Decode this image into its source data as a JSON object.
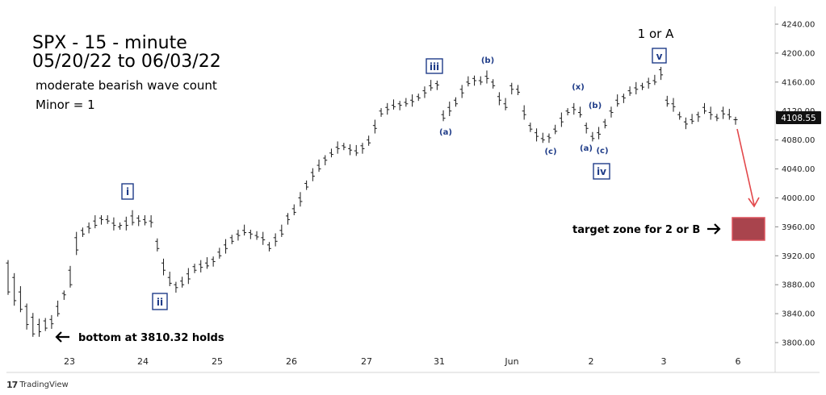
{
  "logo": {
    "mark": "17",
    "text": "TradingView"
  },
  "chart_data": {
    "type": "candlestick",
    "title": "SPX - 15 - minute",
    "subtitle": "05/20/22 to 06/03/22",
    "notes": [
      "moderate bearish wave count",
      "Minor = 1"
    ],
    "ylim": [
      3780,
      4250
    ],
    "y_ticks": [
      "4240.00",
      "4200.00",
      "4160.00",
      "4120.00",
      "4080.00",
      "4040.00",
      "4000.00",
      "3960.00",
      "3920.00",
      "3880.00",
      "3840.00",
      "3800.00"
    ],
    "x_ticks": [
      "23",
      "24",
      "25",
      "26",
      "27",
      "31",
      "Jun",
      "2",
      "3",
      "6"
    ],
    "last_price": "4108.55",
    "price_path": [
      [
        3910,
        3870
      ],
      [
        3890,
        3858
      ],
      [
        3870,
        3846
      ],
      [
        3850,
        3825
      ],
      [
        3835,
        3812
      ],
      [
        3825,
        3815
      ],
      [
        3830,
        3820
      ],
      [
        3832,
        3826
      ],
      [
        3850,
        3840
      ],
      [
        3868,
        3866
      ],
      [
        3900,
        3880
      ],
      [
        3945,
        3928
      ],
      [
        3955,
        3950
      ],
      [
        3960,
        3958
      ],
      [
        3968,
        3962
      ],
      [
        3972,
        3970
      ],
      [
        3970,
        3968
      ],
      [
        3965,
        3962
      ],
      [
        3960,
        3962
      ],
      [
        3968,
        3962
      ],
      [
        3975,
        3966
      ],
      [
        3972,
        3968
      ],
      [
        3970,
        3966
      ],
      [
        3968,
        3966
      ],
      [
        3940,
        3930
      ],
      [
        3910,
        3900
      ],
      [
        3890,
        3882
      ],
      [
        3880,
        3876
      ],
      [
        3885,
        3880
      ],
      [
        3895,
        3888
      ],
      [
        3905,
        3900
      ],
      [
        3908,
        3904
      ],
      [
        3910,
        3906
      ],
      [
        3915,
        3912
      ],
      [
        3925,
        3920
      ],
      [
        3935,
        3930
      ],
      [
        3945,
        3940
      ],
      [
        3950,
        3948
      ],
      [
        3955,
        3952
      ],
      [
        3952,
        3950
      ],
      [
        3948,
        3946
      ],
      [
        3945,
        3942
      ],
      [
        3935,
        3930
      ],
      [
        3945,
        3940
      ],
      [
        3955,
        3950
      ],
      [
        3975,
        3970
      ],
      [
        3985,
        3980
      ],
      [
        4000,
        3995
      ],
      [
        4020,
        4015
      ],
      [
        4035,
        4030
      ],
      [
        4045,
        4040
      ],
      [
        4055,
        4052
      ],
      [
        4062,
        4060
      ],
      [
        4070,
        4068
      ],
      [
        4072,
        4070
      ],
      [
        4068,
        4066
      ],
      [
        4065,
        4062
      ],
      [
        4072,
        4068
      ],
      [
        4080,
        4076
      ],
      [
        4100,
        4096
      ],
      [
        4120,
        4116
      ],
      [
        4125,
        4122
      ],
      [
        4128,
        4126
      ],
      [
        4130,
        4128
      ],
      [
        4132,
        4130
      ],
      [
        4135,
        4133
      ],
      [
        4140,
        4138
      ],
      [
        4148,
        4145
      ],
      [
        4155,
        4152
      ],
      [
        4158,
        4156
      ],
      [
        4115,
        4110
      ],
      [
        4125,
        4120
      ],
      [
        4135,
        4130
      ],
      [
        4150,
        4145
      ],
      [
        4160,
        4158
      ],
      [
        4165,
        4162
      ],
      [
        4162,
        4160
      ],
      [
        4168,
        4165
      ],
      [
        4160,
        4155
      ],
      [
        4140,
        4135
      ],
      [
        4130,
        4125
      ],
      [
        4155,
        4150
      ],
      [
        4150,
        4146
      ],
      [
        4120,
        4115
      ],
      [
        4100,
        4095
      ],
      [
        4090,
        4085
      ],
      [
        4082,
        4080
      ],
      [
        4085,
        4083
      ],
      [
        4095,
        4092
      ],
      [
        4110,
        4105
      ],
      [
        4120,
        4118
      ],
      [
        4125,
        4122
      ],
      [
        4118,
        4115
      ],
      [
        4100,
        4096
      ],
      [
        4085,
        4082
      ],
      [
        4090,
        4088
      ],
      [
        4105,
        4100
      ],
      [
        4120,
        4118
      ],
      [
        4135,
        4130
      ],
      [
        4140,
        4138
      ],
      [
        4148,
        4145
      ],
      [
        4152,
        4150
      ],
      [
        4155,
        4153
      ],
      [
        4160,
        4158
      ],
      [
        4162,
        4160
      ],
      [
        4177,
        4170
      ],
      [
        4135,
        4130
      ],
      [
        4130,
        4126
      ],
      [
        4115,
        4112
      ],
      [
        4105,
        4102
      ],
      [
        4108,
        4106
      ],
      [
        4115,
        4112
      ],
      [
        4125,
        4120
      ],
      [
        4118,
        4115
      ],
      [
        4112,
        4110
      ],
      [
        4120,
        4116
      ],
      [
        4115,
        4112
      ],
      [
        4108,
        4108
      ]
    ],
    "annotations": [
      {
        "text": "1 or A",
        "kind": "plain"
      },
      {
        "text": "v",
        "kind": "box"
      },
      {
        "text": "iii",
        "kind": "box"
      },
      {
        "text": "(b)",
        "kind": "small"
      },
      {
        "text": "(a)",
        "kind": "small"
      },
      {
        "text": "(x)",
        "kind": "small"
      },
      {
        "text": "(b)",
        "kind": "small"
      },
      {
        "text": "(c)",
        "kind": "small"
      },
      {
        "text": "(a)",
        "kind": "small"
      },
      {
        "text": "(c)",
        "kind": "small"
      },
      {
        "text": "iv",
        "kind": "box"
      },
      {
        "text": "i",
        "kind": "box"
      },
      {
        "text": "ii",
        "kind": "box"
      },
      {
        "text": "bottom at 3810.32 holds",
        "kind": "note"
      },
      {
        "text": "target zone for 2 or B",
        "kind": "note"
      }
    ],
    "target_zone": {
      "from": 3945,
      "to": 3975,
      "color": "#a0303a"
    },
    "colors": {
      "bars": "#1a1a1a",
      "boxes": "#1f3c88",
      "arrow": "#e2474a"
    }
  }
}
